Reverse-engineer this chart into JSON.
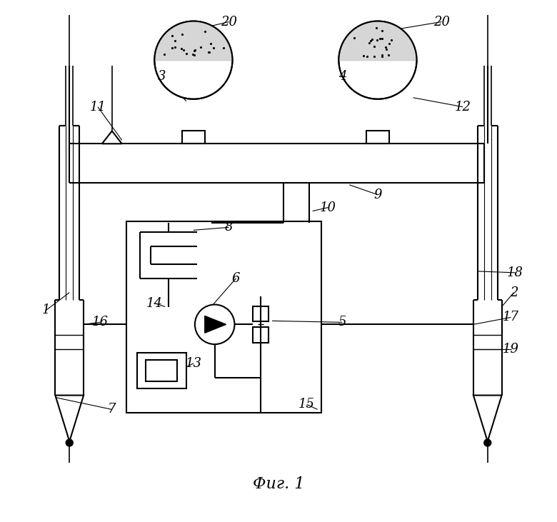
{
  "bg_color": "#ffffff",
  "fig_width": 7.8,
  "fig_height": 7.31,
  "title": "Фиг. 1"
}
